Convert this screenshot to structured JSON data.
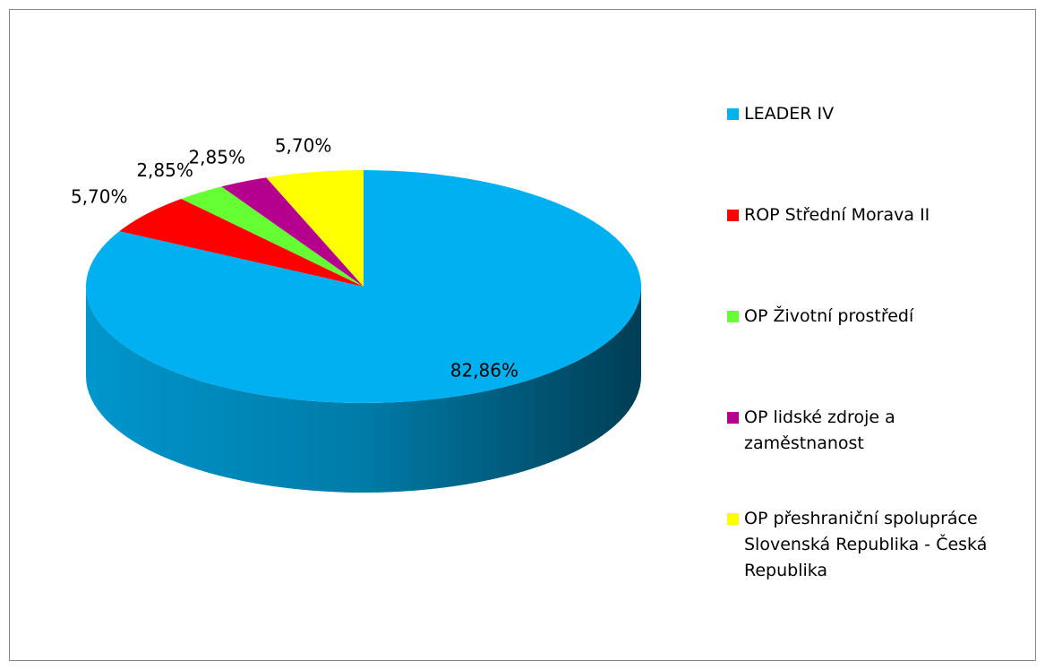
{
  "chart_data": {
    "type": "pie",
    "categories": [
      "LEADER IV",
      "ROP Střední Morava II",
      "OP Životní prostředí",
      "OP lidské zdroje a zaměstnanost",
      "OP přeshraniční spolupráce Slovenská Republika - Česká Republika"
    ],
    "values": [
      82.86,
      5.7,
      2.85,
      2.85,
      5.7
    ],
    "value_labels": [
      "82,86%",
      "5,70%",
      "2,85%",
      "2,85%",
      "5,70%"
    ],
    "colors": [
      "#00b0f0",
      "#ff0000",
      "#66ff33",
      "#b5008e",
      "#ffff00"
    ],
    "legend": "right"
  }
}
